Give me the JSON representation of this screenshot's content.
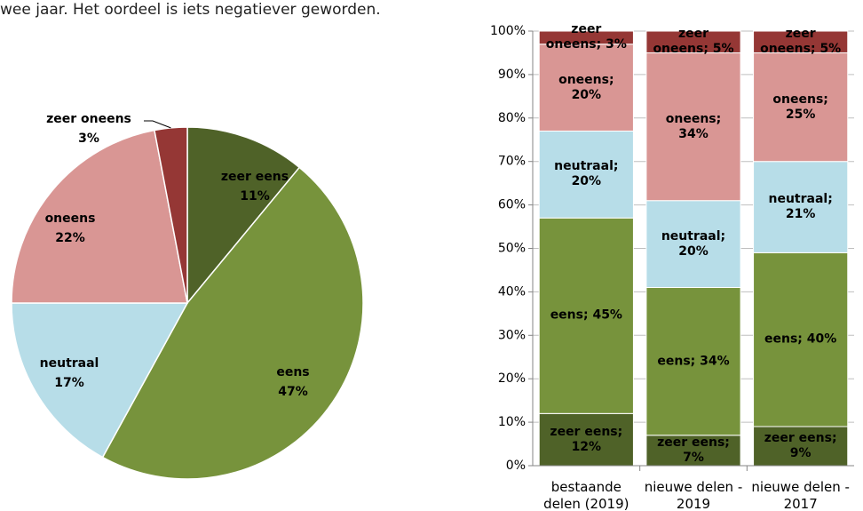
{
  "intro": "wee jaar. Het oordeel is iets negatiever geworden.",
  "chart_data": [
    {
      "type": "pie",
      "categories": [
        "zeer eens",
        "eens",
        "neutraal",
        "oneens",
        "zeer oneens"
      ],
      "values": [
        11,
        47,
        17,
        22,
        3
      ],
      "value_labels": [
        "11%",
        "47%",
        "17%",
        "22%",
        "3%"
      ],
      "colors": [
        "#4f6228",
        "#77933c",
        "#b7dde8",
        "#d99694",
        "#953735"
      ]
    },
    {
      "type": "bar",
      "stacked": true,
      "categories": [
        "bestaande delen (2019)",
        "nieuwe delen - 2019",
        "nieuwe delen - 2017"
      ],
      "series": [
        {
          "name": "zeer eens",
          "color": "#4f6228",
          "values": [
            12,
            7,
            9
          ],
          "value_labels": [
            "zeer eens; 12%",
            "zeer eens; 7%",
            "zeer eens; 9%"
          ]
        },
        {
          "name": "eens",
          "color": "#77933c",
          "values": [
            45,
            34,
            40
          ],
          "value_labels": [
            "eens; 45%",
            "eens; 34%",
            "eens; 40%"
          ]
        },
        {
          "name": "neutraal",
          "color": "#b7dde8",
          "values": [
            20,
            20,
            21
          ],
          "value_labels": [
            "neutraal; 20%",
            "neutraal; 20%",
            "neutraal; 21%"
          ]
        },
        {
          "name": "oneens",
          "color": "#d99694",
          "values": [
            20,
            34,
            25
          ],
          "value_labels": [
            "oneens; 20%",
            "oneens; 34%",
            "oneens; 25%"
          ]
        },
        {
          "name": "zeer oneens",
          "color": "#953735",
          "values": [
            3,
            5,
            5
          ],
          "value_labels": [
            "zeer oneens; 3%",
            "zeer oneens; 5%",
            "zeer oneens; 5%"
          ]
        }
      ],
      "ylim": [
        0,
        100
      ],
      "yticks": [
        {
          "value": 0,
          "label": "0%"
        },
        {
          "value": 10,
          "label": "10%"
        },
        {
          "value": 20,
          "label": "20%"
        },
        {
          "value": 30,
          "label": "30%"
        },
        {
          "value": 40,
          "label": "40%"
        },
        {
          "value": 50,
          "label": "50%"
        },
        {
          "value": 60,
          "label": "60%"
        },
        {
          "value": 70,
          "label": "70%"
        },
        {
          "value": 80,
          "label": "80%"
        },
        {
          "value": 90,
          "label": "90%"
        },
        {
          "value": 100,
          "label": "100%"
        }
      ],
      "grid": true
    }
  ]
}
